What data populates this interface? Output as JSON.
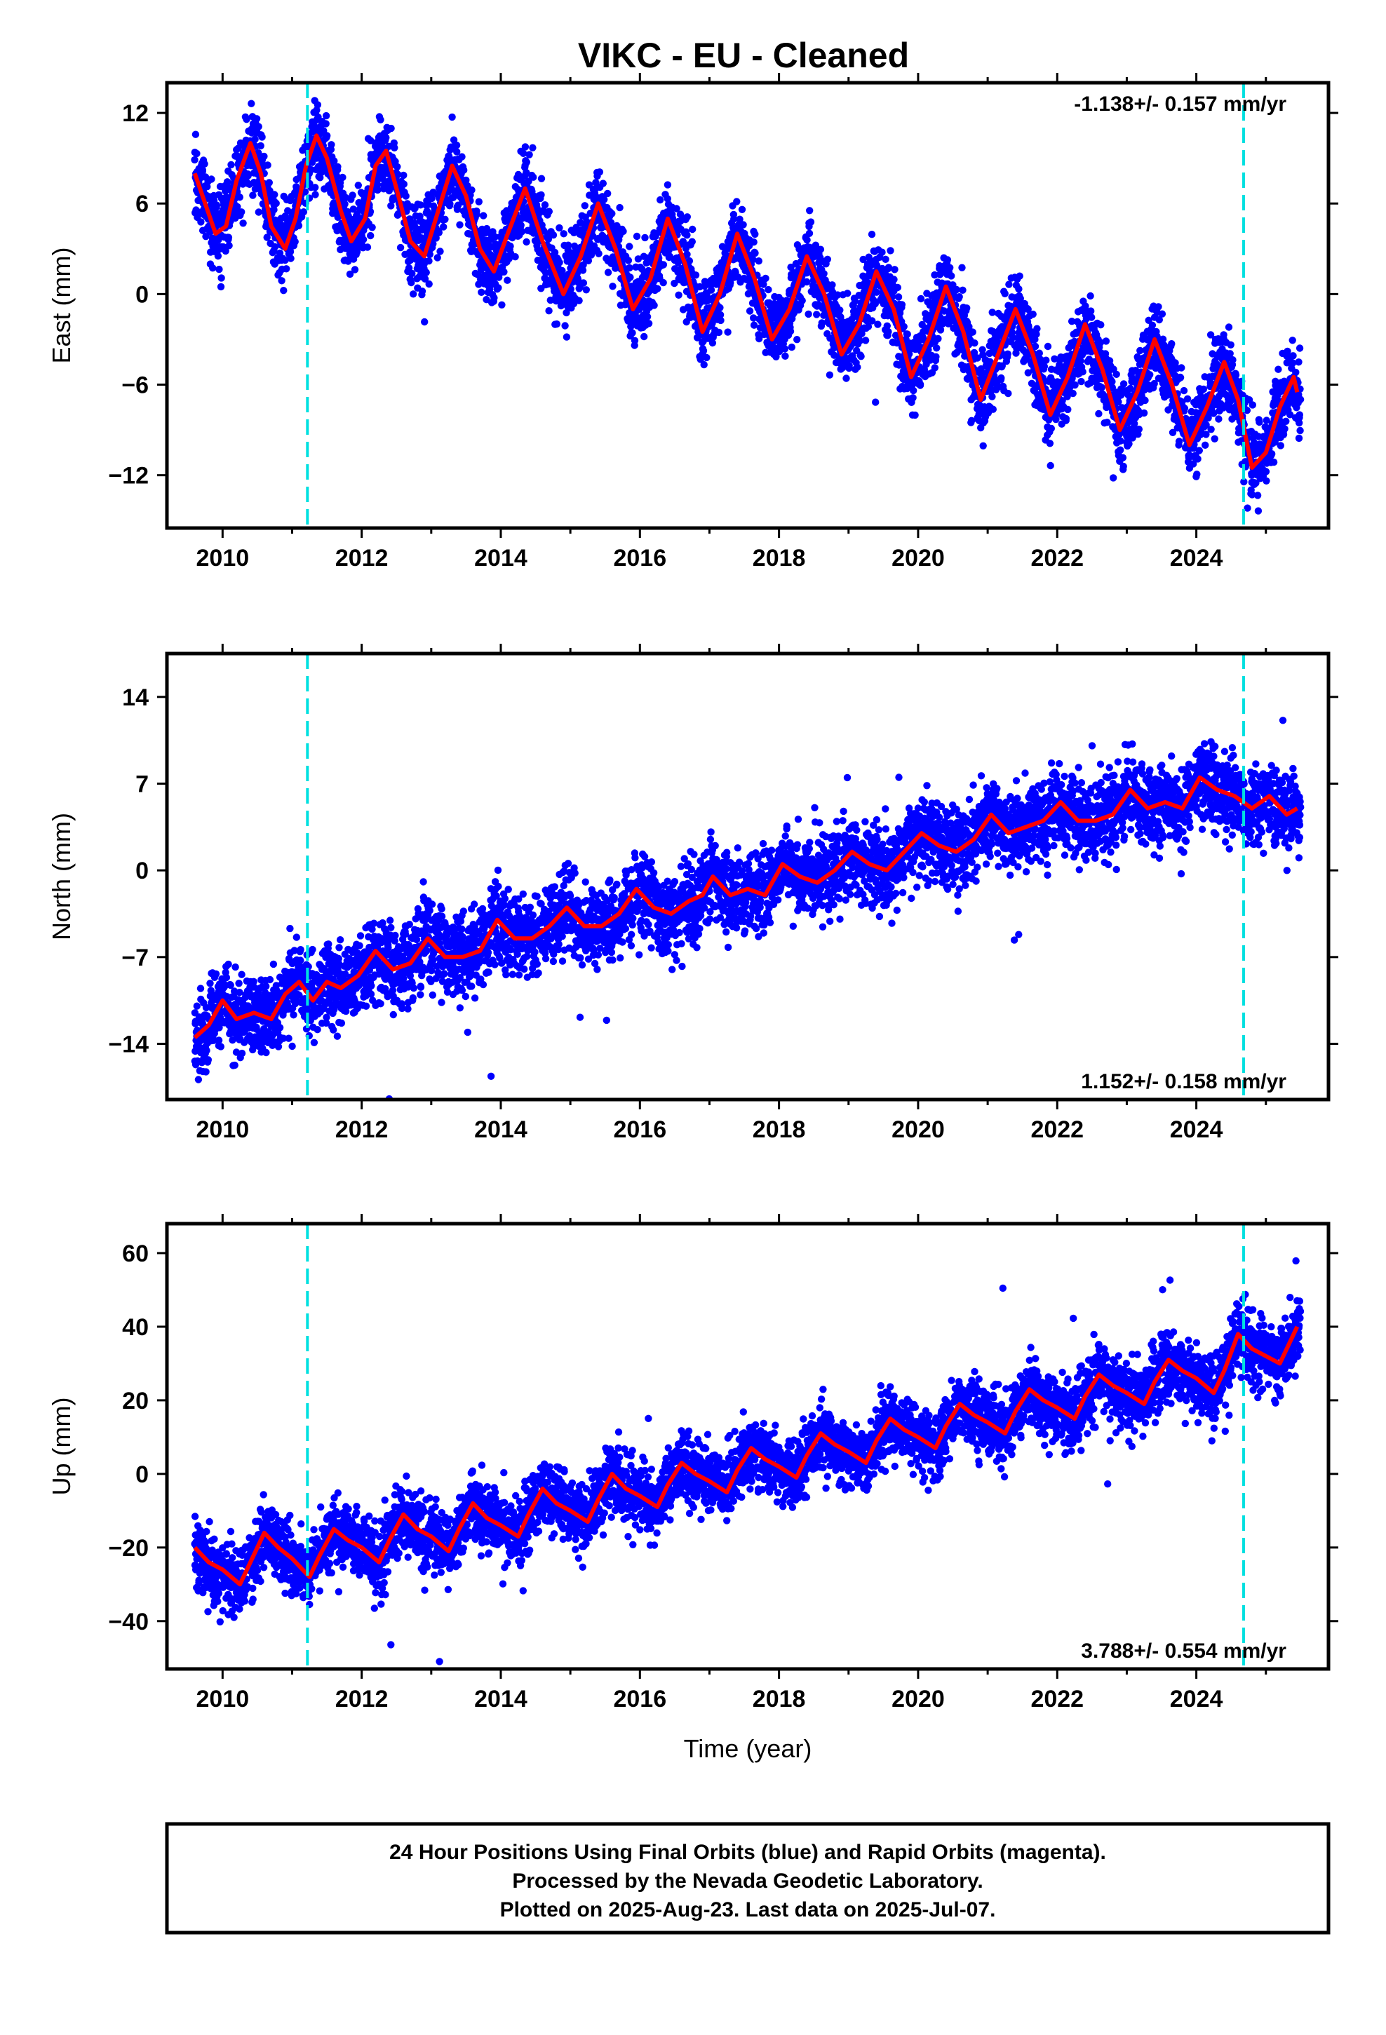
{
  "title": "VIKC  - EU - Cleaned",
  "footer": {
    "lines": [
      "24 Hour Positions Using Final Orbits (blue) and Rapid Orbits (magenta).",
      "Processed by the Nevada Geodetic Laboratory.",
      "Plotted on 2025-Aug-23. Last data on 2025-Jul-07."
    ]
  },
  "colors": {
    "points": "#0000ff",
    "model": "#ff0000",
    "markers": "#00e0e0"
  },
  "chart_data": [
    {
      "type": "scatter",
      "ylabel": "East (mm)",
      "xlabel": "",
      "rate_text": "-1.138+/- 0.157 mm/yr",
      "rate_position": "top-right",
      "xlim": [
        2009.2,
        2025.9
      ],
      "ylim": [
        -15.5,
        14
      ],
      "xticks": [
        2010,
        2012,
        2014,
        2016,
        2018,
        2020,
        2022,
        2024
      ],
      "xtick_labels": [
        "2010",
        "2012",
        "2014",
        "2016",
        "2018",
        "2020",
        "2022",
        "2024"
      ],
      "yticks": [
        12,
        6,
        0,
        -6,
        -12
      ],
      "ytick_labels": [
        "12",
        "6",
        "0",
        "−6",
        "−12"
      ],
      "event_lines_x": [
        2011.22,
        2024.68
      ],
      "series": [
        {
          "name": "model",
          "style": "line",
          "x": [
            2009.6,
            2009.75,
            2009.9,
            2010.05,
            2010.2,
            2010.4,
            2010.55,
            2010.7,
            2010.9,
            2011.05,
            2011.2,
            2011.35,
            2011.5,
            2011.7,
            2011.85,
            2012.05,
            2012.2,
            2012.35,
            2012.5,
            2012.7,
            2012.9,
            2013.1,
            2013.3,
            2013.5,
            2013.7,
            2013.9,
            2014.1,
            2014.35,
            2014.6,
            2014.9,
            2015.15,
            2015.4,
            2015.65,
            2015.9,
            2016.15,
            2016.4,
            2016.65,
            2016.9,
            2017.15,
            2017.4,
            2017.65,
            2017.9,
            2018.15,
            2018.4,
            2018.65,
            2018.9,
            2019.15,
            2019.4,
            2019.65,
            2019.9,
            2020.15,
            2020.4,
            2020.65,
            2020.9,
            2021.15,
            2021.4,
            2021.65,
            2021.9,
            2022.15,
            2022.4,
            2022.65,
            2022.9,
            2023.15,
            2023.4,
            2023.65,
            2023.9,
            2024.15,
            2024.4,
            2024.6,
            2024.8,
            2025.0,
            2025.2,
            2025.4,
            2025.45
          ],
          "y": [
            8.0,
            6.0,
            4.0,
            4.5,
            7.5,
            10.0,
            8.0,
            4.5,
            3.0,
            5.0,
            8.5,
            10.5,
            9.0,
            5.5,
            3.5,
            5.0,
            8.5,
            9.5,
            7.0,
            3.5,
            2.5,
            5.5,
            8.5,
            6.5,
            3.0,
            1.5,
            4.0,
            7.0,
            3.5,
            0.0,
            2.5,
            6.0,
            3.0,
            -1.0,
            1.0,
            5.0,
            2.0,
            -2.5,
            0.0,
            4.0,
            1.0,
            -3.0,
            -1.0,
            2.5,
            0.0,
            -4.0,
            -2.0,
            1.5,
            -1.0,
            -5.5,
            -3.0,
            0.5,
            -2.5,
            -7.0,
            -4.0,
            -1.0,
            -4.0,
            -8.0,
            -5.5,
            -2.0,
            -5.0,
            -9.0,
            -6.5,
            -3.0,
            -6.0,
            -10.0,
            -7.5,
            -4.5,
            -7.0,
            -11.5,
            -10.5,
            -7.5,
            -5.5,
            -6.5
          ]
        },
        {
          "name": "daily",
          "style": "points",
          "model_ref": "model",
          "scatter_sd": 1.3,
          "range": [
            2009.6,
            2025.5
          ]
        }
      ]
    },
    {
      "type": "scatter",
      "ylabel": "North (mm)",
      "xlabel": "",
      "rate_text": "1.152+/- 0.158 mm/yr",
      "rate_position": "bottom-right",
      "xlim": [
        2009.2,
        2025.9
      ],
      "ylim": [
        -18.5,
        17.5
      ],
      "xticks": [
        2010,
        2012,
        2014,
        2016,
        2018,
        2020,
        2022,
        2024
      ],
      "xtick_labels": [
        "2010",
        "2012",
        "2014",
        "2016",
        "2018",
        "2020",
        "2022",
        "2024"
      ],
      "yticks": [
        14,
        7,
        0,
        -7,
        -14
      ],
      "ytick_labels": [
        "14",
        "7",
        "0",
        "−7",
        "−14"
      ],
      "event_lines_x": [
        2011.22,
        2024.68
      ],
      "series": [
        {
          "name": "model",
          "style": "line",
          "x": [
            2009.6,
            2009.8,
            2010.0,
            2010.2,
            2010.45,
            2010.7,
            2010.9,
            2011.1,
            2011.3,
            2011.5,
            2011.7,
            2011.95,
            2012.2,
            2012.45,
            2012.7,
            2012.95,
            2013.2,
            2013.45,
            2013.7,
            2013.95,
            2014.2,
            2014.45,
            2014.7,
            2014.95,
            2015.2,
            2015.45,
            2015.7,
            2015.95,
            2016.2,
            2016.45,
            2016.7,
            2016.9,
            2017.05,
            2017.3,
            2017.55,
            2017.8,
            2018.05,
            2018.3,
            2018.55,
            2018.8,
            2019.05,
            2019.3,
            2019.55,
            2019.8,
            2020.05,
            2020.3,
            2020.55,
            2020.8,
            2021.05,
            2021.3,
            2021.55,
            2021.8,
            2022.05,
            2022.3,
            2022.55,
            2022.8,
            2023.05,
            2023.3,
            2023.55,
            2023.8,
            2024.05,
            2024.3,
            2024.55,
            2024.8,
            2025.05,
            2025.3,
            2025.45
          ],
          "y": [
            -13.5,
            -12.5,
            -10.5,
            -12.0,
            -11.5,
            -12.0,
            -10.0,
            -9.0,
            -10.5,
            -9.0,
            -9.5,
            -8.5,
            -6.5,
            -8.0,
            -7.5,
            -5.5,
            -7.0,
            -7.0,
            -6.5,
            -4.0,
            -5.5,
            -5.5,
            -4.5,
            -3.0,
            -4.5,
            -4.5,
            -3.5,
            -1.5,
            -3.0,
            -3.5,
            -2.5,
            -2.0,
            -0.5,
            -2.0,
            -1.5,
            -2.0,
            0.5,
            -0.5,
            -1.0,
            0.0,
            1.5,
            0.5,
            0.0,
            1.5,
            3.0,
            2.0,
            1.5,
            2.5,
            4.5,
            3.0,
            3.5,
            4.0,
            5.5,
            4.0,
            4.0,
            4.5,
            6.5,
            5.0,
            5.5,
            5.0,
            7.5,
            6.5,
            6.0,
            5.0,
            6.0,
            4.5,
            5.0
          ]
        },
        {
          "name": "daily",
          "style": "points",
          "model_ref": "model",
          "scatter_sd": 1.6,
          "range": [
            2009.6,
            2025.5
          ]
        }
      ]
    },
    {
      "type": "scatter",
      "ylabel": "Up (mm)",
      "xlabel": "Time (year)",
      "rate_text": "3.788+/- 0.554 mm/yr",
      "rate_position": "bottom-right",
      "xlim": [
        2009.2,
        2025.9
      ],
      "ylim": [
        -53,
        68
      ],
      "xticks": [
        2010,
        2012,
        2014,
        2016,
        2018,
        2020,
        2022,
        2024
      ],
      "xtick_labels": [
        "2010",
        "2012",
        "2014",
        "2016",
        "2018",
        "2020",
        "2022",
        "2024"
      ],
      "yticks": [
        60,
        40,
        20,
        0,
        -20,
        -40
      ],
      "ytick_labels": [
        "60",
        "40",
        "20",
        "0",
        "−20",
        "−40"
      ],
      "event_lines_x": [
        2011.22,
        2024.68
      ],
      "series": [
        {
          "name": "model",
          "style": "line",
          "x": [
            2009.6,
            2009.8,
            2010.0,
            2010.25,
            2010.4,
            2010.6,
            2010.8,
            2011.0,
            2011.25,
            2011.4,
            2011.6,
            2011.8,
            2012.0,
            2012.25,
            2012.4,
            2012.6,
            2012.8,
            2013.0,
            2013.25,
            2013.4,
            2013.6,
            2013.8,
            2014.0,
            2014.25,
            2014.4,
            2014.6,
            2014.8,
            2015.0,
            2015.25,
            2015.4,
            2015.6,
            2015.8,
            2016.0,
            2016.25,
            2016.4,
            2016.6,
            2016.8,
            2017.0,
            2017.25,
            2017.4,
            2017.6,
            2017.8,
            2018.0,
            2018.25,
            2018.4,
            2018.6,
            2018.8,
            2019.0,
            2019.25,
            2019.4,
            2019.6,
            2019.8,
            2020.0,
            2020.25,
            2020.4,
            2020.6,
            2020.8,
            2021.0,
            2021.25,
            2021.4,
            2021.6,
            2021.8,
            2022.0,
            2022.25,
            2022.4,
            2022.6,
            2022.8,
            2023.0,
            2023.25,
            2023.4,
            2023.6,
            2023.8,
            2024.0,
            2024.25,
            2024.4,
            2024.6,
            2024.8,
            2025.0,
            2025.2,
            2025.45
          ],
          "y": [
            -20,
            -24,
            -26,
            -30,
            -24,
            -16,
            -20,
            -23,
            -28,
            -22,
            -15,
            -18,
            -20,
            -24,
            -18,
            -11,
            -15,
            -17,
            -21,
            -15,
            -8,
            -12,
            -14,
            -17,
            -11,
            -4,
            -8,
            -10,
            -13,
            -7,
            0,
            -4,
            -6,
            -9,
            -3,
            3,
            0,
            -2,
            -5,
            1,
            7,
            4,
            2,
            -1,
            5,
            11,
            8,
            6,
            3,
            9,
            15,
            12,
            10,
            7,
            13,
            19,
            16,
            14,
            11,
            17,
            23,
            20,
            18,
            15,
            21,
            27,
            24,
            22,
            19,
            25,
            31,
            28,
            26,
            22,
            28,
            38,
            34,
            32,
            30,
            40
          ]
        },
        {
          "name": "daily",
          "style": "points",
          "model_ref": "model",
          "scatter_sd": 4.5,
          "range": [
            2009.6,
            2025.5
          ]
        }
      ]
    }
  ]
}
